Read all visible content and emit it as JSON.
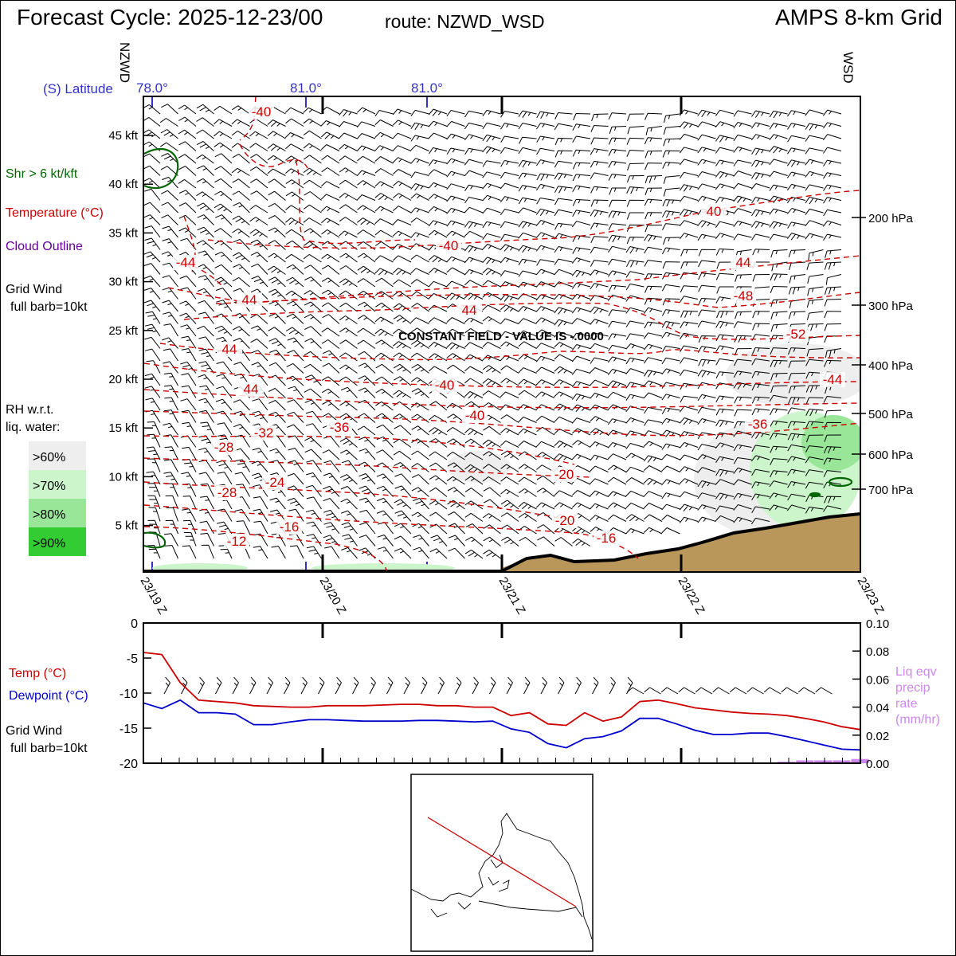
{
  "header": {
    "cycle": "Forecast Cycle: 2025-12-23/00",
    "route": "route: NZWD_WSD",
    "grid": "AMPS 8-km Grid"
  },
  "colors": {
    "temp": "#cc0000",
    "dewpoint": "#0000cc",
    "shear": "#006600",
    "cloud": "#660099",
    "precip": "#cc88ee",
    "terrain": "#b9975b",
    "latitude": "#3333cc",
    "rh60": "#eeeeee",
    "rh70": "#ccf5cc",
    "rh80": "#99e699",
    "rh90": "#33cc33"
  },
  "legend": {
    "shear": "Shr > 6 kt/kft",
    "temperature": "Temperature (°C)",
    "cloud": "Cloud Outline",
    "wind_line1": "Grid Wind",
    "wind_line2": "full barb=10kt",
    "rh_line1": "RH w.r.t.",
    "rh_line2": "liq. water:",
    "rh_levels": [
      ">60%",
      ">70%",
      ">80%",
      ">90%"
    ]
  },
  "lower_legend": {
    "temp": "Temp (°C)",
    "dewpoint": "Dewpoint (°C)",
    "wind_line1": "Grid Wind",
    "wind_line2": "full barb=10kt",
    "precip": [
      "Liq eqv",
      "precip",
      "rate",
      "(mm/hr)"
    ]
  },
  "cross_section": {
    "start_station": "NZWD",
    "end_station": "WSD",
    "latitude_label": "(S) Latitude",
    "latitude_ticks": [
      "78.0°",
      "81.0°",
      "81.0°"
    ],
    "altitude_ticks": [
      "45 kft",
      "40 kft",
      "35 kft",
      "30 kft",
      "25 kft",
      "20 kft",
      "15 kft",
      "10 kft",
      "5 kft"
    ],
    "pressure_ticks": [
      "200 hPa",
      "300 hPa",
      "400 hPa",
      "500 hPa",
      "600 hPa",
      "700 hPa"
    ],
    "time_ticks": [
      "23/19 Z",
      "23/20 Z",
      "23/21 Z",
      "23/22 Z",
      "23/23 Z"
    ],
    "note": "CONSTANT FIELD - VALUE IS -.0000",
    "isotherm_labels": [
      "-40",
      "-44",
      "-40",
      "40",
      "44",
      "-48",
      "44",
      "-52",
      "44",
      "-44",
      "44",
      "-40",
      "44",
      "-40",
      "-36",
      "-32",
      "-36",
      "-28",
      "-24",
      "-20",
      "-28",
      "-16",
      "-20",
      "-12",
      "-16"
    ]
  },
  "chart_data": {
    "type": "line",
    "x": [
      "23/19 Z",
      "",
      "",
      "",
      "",
      "",
      "",
      "",
      "",
      "23/20 Z",
      "",
      "",
      "",
      "",
      "",
      "",
      "",
      "",
      "",
      "23/21 Z",
      "",
      "",
      "",
      "",
      "",
      "",
      "",
      "",
      "",
      "23/22 Z",
      "",
      "",
      "",
      "",
      "",
      "",
      "",
      "",
      "",
      "23/23 Z"
    ],
    "series": [
      {
        "name": "Temp (°C)",
        "values": [
          -4.2,
          -4.5,
          -8.5,
          -11.0,
          -11.2,
          -11.4,
          -11.8,
          -11.9,
          -12.0,
          -12.0,
          -11.8,
          -11.8,
          -11.8,
          -11.7,
          -11.6,
          -11.6,
          -11.8,
          -11.8,
          -12.0,
          -12.0,
          -13.2,
          -12.8,
          -14.4,
          -14.6,
          -12.8,
          -14.0,
          -13.4,
          -11.2,
          -11.0,
          -11.5,
          -12.1,
          -12.4,
          -12.7,
          -12.9,
          -13.0,
          -13.2,
          -13.6,
          -14.1,
          -14.8,
          -15.2
        ]
      },
      {
        "name": "Dewpoint (°C)",
        "values": [
          -11.4,
          -12.2,
          -11.0,
          -12.8,
          -12.8,
          -13.0,
          -14.5,
          -14.5,
          -14.1,
          -13.8,
          -13.8,
          -13.9,
          -14.0,
          -14.0,
          -14.0,
          -13.9,
          -13.9,
          -14.0,
          -14.1,
          -14.0,
          -15.1,
          -15.6,
          -17.2,
          -17.8,
          -16.5,
          -16.2,
          -15.4,
          -13.6,
          -13.6,
          -14.4,
          -15.3,
          -15.9,
          -15.9,
          -15.7,
          -15.7,
          -16.2,
          -16.8,
          -17.4,
          -18.0,
          -18.1
        ]
      },
      {
        "name": "Liq eqv precip rate (mm/hr)",
        "values": [
          0,
          0,
          0,
          0,
          0,
          0,
          0,
          0,
          0,
          0,
          0,
          0,
          0,
          0,
          0,
          0,
          0,
          0,
          0,
          0,
          0,
          0,
          0,
          0,
          0,
          0,
          0,
          0,
          0,
          0,
          0,
          0,
          0,
          0,
          0,
          0.001,
          0.002,
          0.002,
          0.002,
          0.003
        ]
      }
    ],
    "xlabel": "",
    "ylabel": "",
    "ylim": [
      -20,
      0
    ],
    "y2lim": [
      0,
      0.1
    ],
    "yticks": [
      "0",
      "-5",
      "-10",
      "-15",
      "-20"
    ],
    "y2ticks": [
      "0.10",
      "0.08",
      "0.06",
      "0.04",
      "0.02",
      "0.00"
    ]
  }
}
